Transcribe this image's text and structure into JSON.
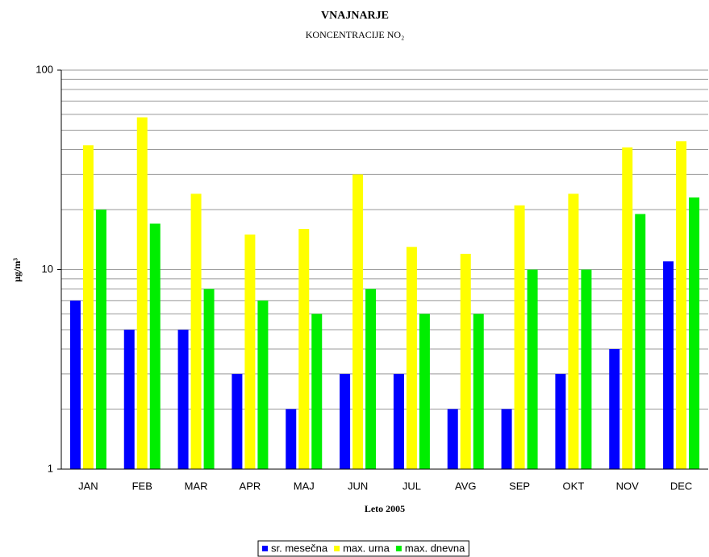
{
  "chart_data": {
    "type": "bar",
    "title": "VNAJNARJE",
    "subtitle": "KONCENTRACIJE NO₂",
    "y_label": "µg/m³",
    "x_label": "Leto 2005",
    "categories": [
      "JAN",
      "FEB",
      "MAR",
      "APR",
      "MAJ",
      "JUN",
      "JUL",
      "AVG",
      "SEP",
      "OKT",
      "NOV",
      "DEC"
    ],
    "series": [
      {
        "name": "sr. mesečna",
        "color": "#0000ff",
        "values": [
          7,
          5,
          5,
          3,
          2,
          3,
          3,
          2,
          2,
          3,
          4,
          11
        ]
      },
      {
        "name": "max. urna",
        "color": "#ffff00",
        "values": [
          42,
          58,
          24,
          15,
          16,
          30,
          13,
          12,
          21,
          24,
          41,
          44
        ]
      },
      {
        "name": "max. dnevna",
        "color": "#00ee00",
        "values": [
          20,
          17,
          8,
          7,
          6,
          8,
          6,
          6,
          10,
          10,
          19,
          23
        ]
      }
    ],
    "ylim": [
      1,
      100
    ],
    "yticks": [
      1,
      10,
      100
    ],
    "log_scale": true,
    "grid": true,
    "minor_grid": true,
    "legend": "bottom"
  }
}
